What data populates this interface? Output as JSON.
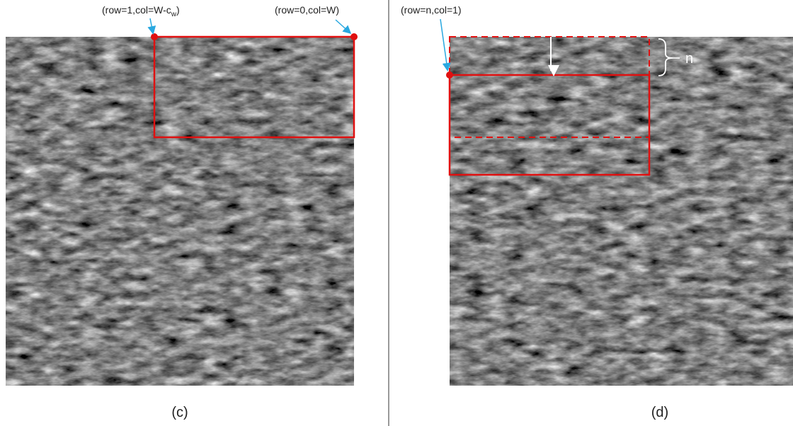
{
  "left_panel": {
    "label_top_left": {
      "main": "(row=1,col=W-c",
      "sub": "w",
      "end": ")"
    },
    "label_top_right": "(row=0,col=W)",
    "caption": "(c)"
  },
  "right_panel": {
    "label_top_left": "(row=n,col=1)",
    "brace_label": "n",
    "caption": "(d)"
  }
}
